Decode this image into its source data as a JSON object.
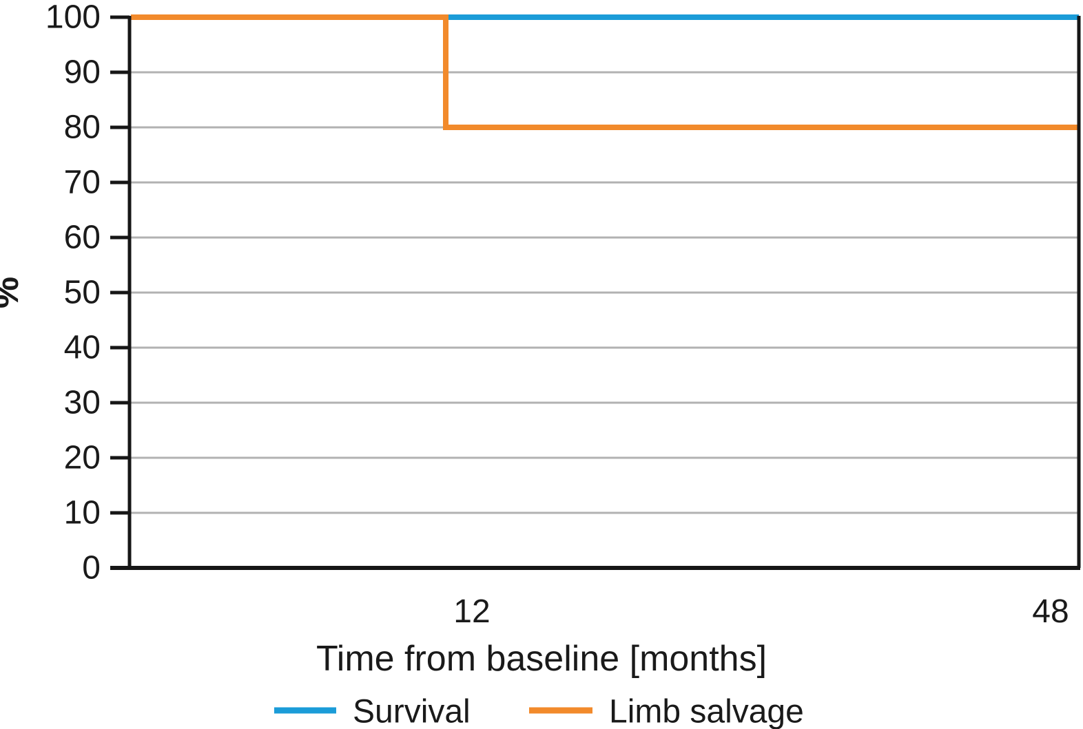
{
  "chart_data": {
    "type": "line",
    "line_style": "step-after",
    "title": "",
    "xlabel": "Time from baseline [months]",
    "ylabel": "%",
    "x_unit": "months",
    "xlim": [
      0,
      48
    ],
    "ylim": [
      0,
      100
    ],
    "y_tick_step": 10,
    "grid": "horizontal-only",
    "legend_position": "bottom-center",
    "x_tick_labels": [
      "12",
      "48"
    ],
    "y_tick_labels": [
      "100",
      "90",
      "80",
      "70",
      "60",
      "50",
      "40",
      "30",
      "20",
      "10",
      "0"
    ],
    "series": [
      {
        "name": "Survival",
        "color": "#1B9CD8",
        "points": [
          {
            "x": 0,
            "y": 100
          },
          {
            "x": 48,
            "y": 100
          }
        ]
      },
      {
        "name": "Limb salvage",
        "color": "#F28A2B",
        "points": [
          {
            "x": 0,
            "y": 100
          },
          {
            "x": 12,
            "y": 100
          },
          {
            "x": 12,
            "y": 80
          },
          {
            "x": 48,
            "y": 80
          }
        ]
      }
    ],
    "colors": {
      "axis": "#161616",
      "grid": "#B2B2B2",
      "text": "#1A1A1A",
      "background": "#FFFFFF"
    }
  }
}
